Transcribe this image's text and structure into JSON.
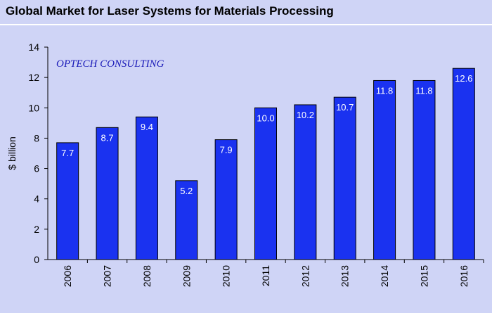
{
  "title": "Global Market for Laser Systems for Materials Processing",
  "colors": {
    "background": "#cfd4f6",
    "bar_fill": "#1a32f0",
    "bar_stroke": "#000000",
    "annotation": "#1a1ab8"
  },
  "chart_data": {
    "type": "bar",
    "title": "Global Market for Laser Systems for Materials Processing",
    "annotation": "OPTECH CONSULTING",
    "xlabel": "",
    "ylabel": "$ billion",
    "ylim": [
      0,
      14
    ],
    "yticks": [
      0,
      2,
      4,
      6,
      8,
      10,
      12,
      14
    ],
    "grid": false,
    "legend": "none",
    "categories": [
      "2006",
      "2007",
      "2008",
      "2009",
      "2010",
      "2011",
      "2012",
      "2013",
      "2014",
      "2015",
      "2016"
    ],
    "values": [
      7.7,
      8.7,
      9.4,
      5.2,
      7.9,
      10.0,
      10.2,
      10.7,
      11.8,
      11.8,
      12.6
    ],
    "value_labels": [
      "7.7",
      "8.7",
      "9.4",
      "5.2",
      "7.9",
      "10.0",
      "10.2",
      "10.7",
      "11.8",
      "11.8",
      "12.6"
    ]
  }
}
